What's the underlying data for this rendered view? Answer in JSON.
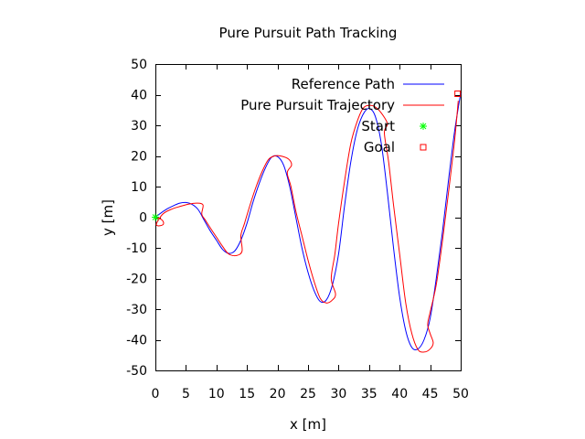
{
  "chart_data": {
    "type": "line",
    "title": "Pure Pursuit Path Tracking",
    "xlabel": "x [m]",
    "ylabel": "y [m]",
    "xlim": [
      0,
      50
    ],
    "ylim": [
      -50,
      50
    ],
    "xticks": [
      0,
      5,
      10,
      15,
      20,
      25,
      30,
      35,
      40,
      45,
      50
    ],
    "yticks": [
      -50,
      -40,
      -30,
      -20,
      -10,
      0,
      10,
      20,
      30,
      40,
      50
    ],
    "grid": false,
    "legend_position": "top-right",
    "series": [
      {
        "name": "Reference Path",
        "kind": "line",
        "color": "#0000ff",
        "x": [
          0,
          1,
          2,
          3,
          4,
          5,
          6,
          7,
          8,
          9,
          10,
          11,
          12,
          13,
          14,
          15,
          16,
          17,
          18,
          19,
          20,
          21,
          22,
          23,
          24,
          25,
          26,
          27,
          28,
          29,
          30,
          31,
          32,
          33,
          34,
          35,
          36,
          37,
          38,
          39,
          40,
          41,
          42,
          43,
          44,
          45,
          46,
          47,
          48,
          49,
          50
        ],
        "y": [
          0,
          1.5,
          2.8,
          3.8,
          4.6,
          4.8,
          4.2,
          2.5,
          -1.0,
          -4.5,
          -7.5,
          -10.5,
          -11.8,
          -11.0,
          -7.5,
          -2.0,
          5.0,
          11.0,
          16.0,
          19.5,
          19.8,
          17.0,
          10.0,
          0.0,
          -10.0,
          -18.0,
          -24.0,
          -27.5,
          -27.0,
          -22.0,
          -12.0,
          4.0,
          18.0,
          28.0,
          33.5,
          35.5,
          33.0,
          24.0,
          8.0,
          -10.0,
          -26.0,
          -37.0,
          -42.5,
          -43.0,
          -40.0,
          -33.0,
          -20.0,
          -5.0,
          12.0,
          28.0,
          40.5
        ]
      },
      {
        "name": "Pure Pursuit Trajectory",
        "kind": "line",
        "color": "#ff0000",
        "x": [
          0,
          0.8,
          1.3,
          1.2,
          0.4,
          0.2,
          1.2,
          2.5,
          4.0,
          5.5,
          6.8,
          7.8,
          7.6,
          8.2,
          9.0,
          10.0,
          11.0,
          12.0,
          13.3,
          14.2,
          14.0,
          14.6,
          15.5,
          16.5,
          17.5,
          18.5,
          19.5,
          20.5,
          21.8,
          22.3,
          21.6,
          22.2,
          23.0,
          24.0,
          25.0,
          26.0,
          27.0,
          28.0,
          29.0,
          29.5,
          28.8,
          29.4,
          30.0,
          31.0,
          32.0,
          33.0,
          34.0,
          35.0,
          36.0,
          37.0,
          38.0,
          37.5,
          38.2,
          39.0,
          40.0,
          41.0,
          42.0,
          43.0,
          44.0,
          45.0,
          45.5,
          45.0,
          44.6,
          45.0,
          46.0,
          47.0,
          48.0,
          49.0,
          49.6
        ],
        "y": [
          0,
          -0.5,
          -1.5,
          -2.5,
          -2.8,
          -2.0,
          1.0,
          2.5,
          3.5,
          4.3,
          4.6,
          4.0,
          1.0,
          -1.0,
          -3.5,
          -6.5,
          -9.5,
          -12.0,
          -12.5,
          -11.0,
          -6.0,
          -2.0,
          4.0,
          10.0,
          15.0,
          18.8,
          20.0,
          20.0,
          19.0,
          17.0,
          14.5,
          10.0,
          2.0,
          -6.0,
          -14.0,
          -21.0,
          -26.5,
          -28.0,
          -27.0,
          -25.0,
          -20.0,
          -12.0,
          -2.0,
          12.0,
          24.0,
          31.0,
          35.5,
          36.5,
          36.0,
          34.0,
          30.5,
          27.5,
          18.0,
          4.0,
          -12.0,
          -28.0,
          -38.0,
          -43.2,
          -44.0,
          -43.0,
          -41.0,
          -38.0,
          -35.0,
          -31.0,
          -22.0,
          -8.0,
          8.0,
          25.0,
          38.0
        ]
      },
      {
        "name": "Start",
        "kind": "point",
        "marker": "asterisk",
        "color": "#00ff00",
        "x": [
          0
        ],
        "y": [
          0
        ]
      },
      {
        "name": "Goal",
        "kind": "point",
        "marker": "square",
        "color": "#ff0000",
        "x": [
          49.5
        ],
        "y": [
          40.3
        ]
      }
    ]
  }
}
